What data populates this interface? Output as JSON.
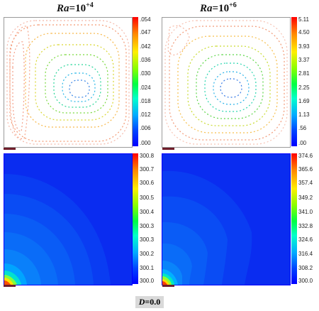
{
  "titles": {
    "left": {
      "prefix": "Ra",
      "mid": "=10",
      "sup": "+4"
    },
    "right": {
      "prefix": "Ra",
      "mid": "=10",
      "sup": "+6"
    }
  },
  "colorbars": {
    "stream_left": [
      ".054",
      ".047",
      ".042",
      ".036",
      ".030",
      ".024",
      ".018",
      ".012",
      ".006",
      ".000"
    ],
    "stream_right": [
      "5.11",
      "4.50",
      "3.93",
      "3.37",
      "2.81",
      "2.25",
      "1.69",
      "1.13",
      ".56",
      ".00"
    ],
    "temp_left": [
      "300.8",
      "300.7",
      "300.6",
      "300.5",
      "300.4",
      "300.3",
      "300.3",
      "300.2",
      "300.1",
      "300.0"
    ],
    "temp_right": [
      "374.6",
      "365.6",
      "357.4",
      "349.2",
      "341.0",
      "332.8",
      "324.6",
      "316.4",
      "308.2",
      "300.0"
    ]
  },
  "caption": {
    "var": "D",
    "value": "=0.0"
  }
}
